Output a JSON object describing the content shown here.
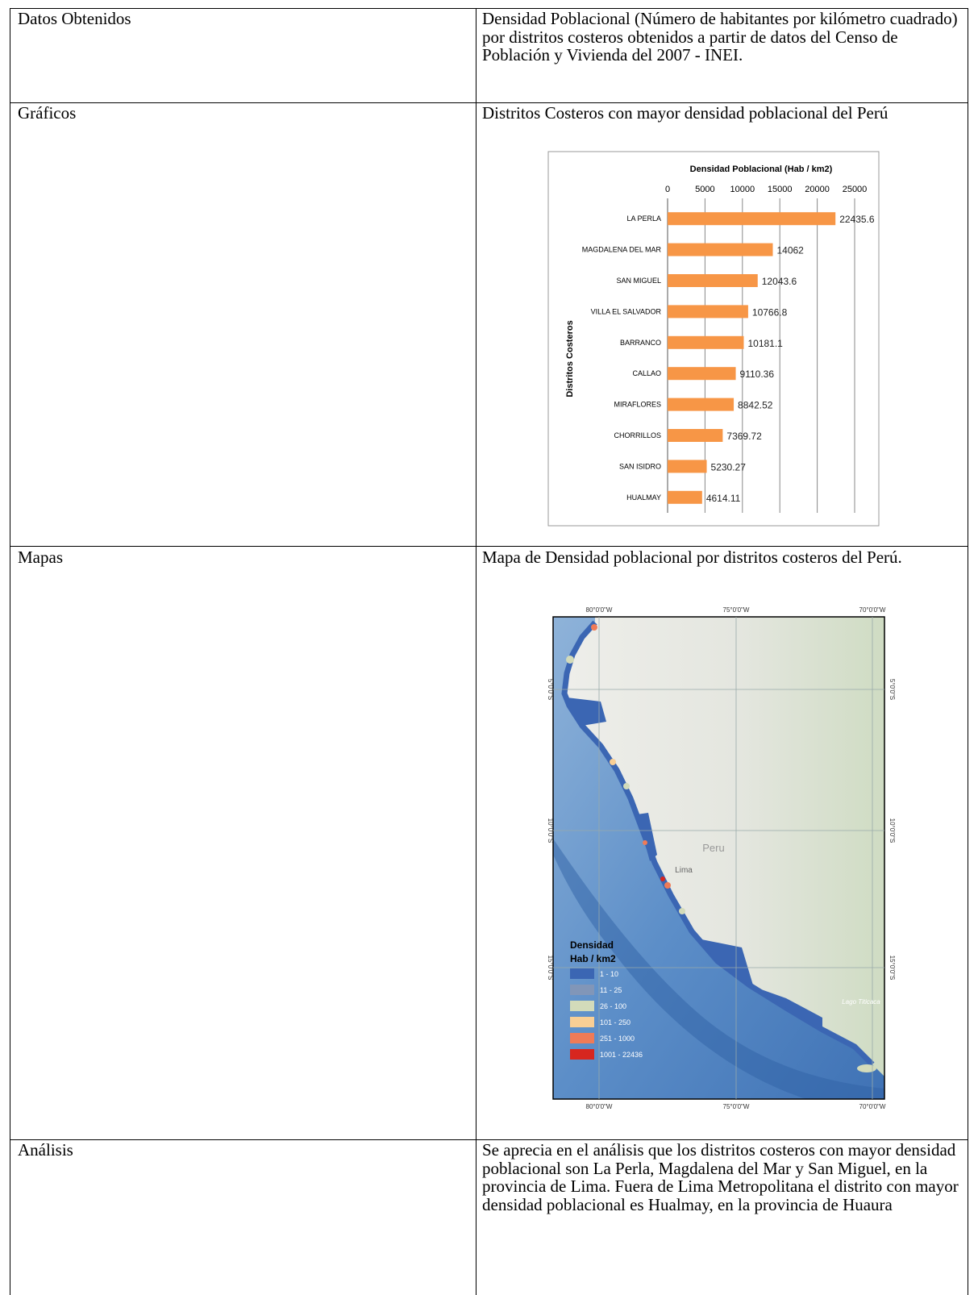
{
  "table": {
    "rows": [
      {
        "label": "Datos Obtenidos",
        "text": "Densidad Poblacional (Número de habitantes por kilómetro cuadrado) por distritos costeros obtenidos a partir de datos del Censo de Población y Vivienda del 2007 - INEI."
      },
      {
        "label": "Gráficos",
        "text": "Distritos Costeros con mayor densidad poblacional del Perú",
        "chart": {
          "type": "bar",
          "orientation": "horizontal",
          "title": "Densidad Poblacional (Hab / km2)",
          "y_label": "Distritos Costeros",
          "categories": [
            "LA PERLA",
            "MAGDALENA DEL MAR",
            "SAN MIGUEL",
            "VILLA EL SALVADOR",
            "BARRANCO",
            "CALLAO",
            "MIRAFLORES",
            "CHORRILLOS",
            "SAN ISIDRO",
            "HUALMAY"
          ],
          "values": [
            22435.6,
            14062,
            12043.6,
            10766.8,
            10181.1,
            9110.36,
            8842.52,
            7369.72,
            5230.27,
            4614.11
          ],
          "color": "#f79646",
          "xlim": [
            0,
            25000
          ],
          "xticks": [
            0,
            5000,
            10000,
            15000,
            20000,
            25000
          ],
          "grid": true
        }
      },
      {
        "label": "Mapas",
        "text": "Mapa de Densidad poblacional por distritos costeros del Perú.",
        "map": {
          "lon_labels": [
            "80°0'0\"W",
            "75°0'0\"W",
            "70°0'0\"W"
          ],
          "lat_labels": [
            "5°0'0\"S",
            "10°0'0\"S",
            "15°0'0\"S"
          ],
          "places": [
            "Peru",
            "Lima",
            "Lago Titicaca"
          ],
          "legend_title": [
            "Densidad",
            "Hab / km2"
          ],
          "legend": [
            {
              "name": "1 - 10",
              "color": "#3b66b3"
            },
            {
              "name": "11 - 25",
              "color": "#8196b8"
            },
            {
              "name": "26 - 100",
              "color": "#d3dbba"
            },
            {
              "name": "101 - 250",
              "color": "#f9cf95"
            },
            {
              "name": "251 - 1000",
              "color": "#ef7b57"
            },
            {
              "name": "1001 - 22436",
              "color": "#d7261f"
            }
          ]
        }
      },
      {
        "label": "Análisis",
        "text": "Se aprecia en el análisis que los distritos costeros con mayor densidad poblacional son La Perla, Magdalena del Mar y San Miguel, en la provincia de Lima. Fuera de Lima Metropolitana el distrito con mayor densidad poblacional es Hualmay, en la provincia de Huaura"
      }
    ]
  }
}
